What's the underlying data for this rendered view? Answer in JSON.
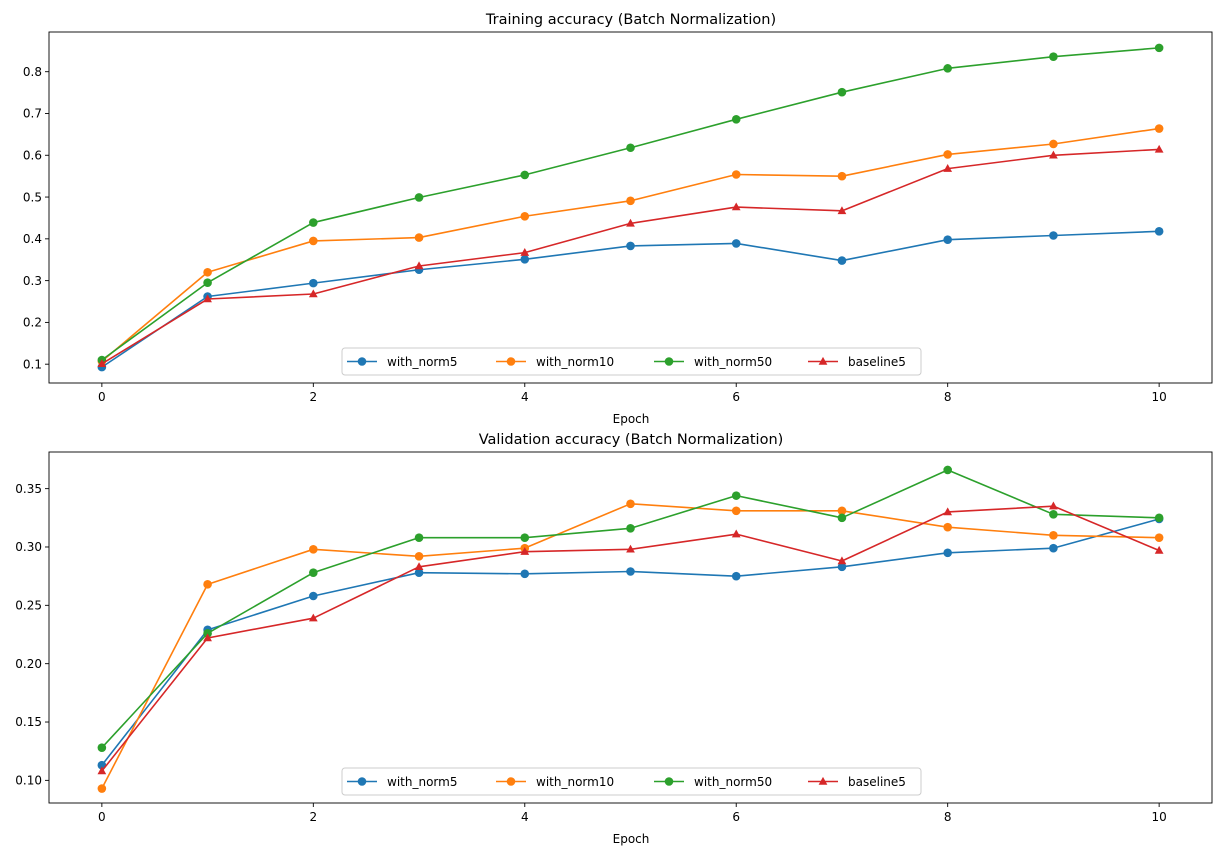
{
  "chart_data": [
    {
      "type": "line",
      "title": "Training accuracy (Batch Normalization)",
      "xlabel": "Epoch",
      "ylabel": "",
      "xlim": [
        -0.5,
        10.5
      ],
      "ylim": [
        0.055,
        0.895
      ],
      "xticks": [
        0,
        2,
        4,
        6,
        8,
        10
      ],
      "yticks": [
        0.1,
        0.2,
        0.3,
        0.4,
        0.5,
        0.6,
        0.7,
        0.8
      ],
      "ytick_labels": [
        "0.1",
        "0.2",
        "0.3",
        "0.4",
        "0.5",
        "0.6",
        "0.7",
        "0.8"
      ],
      "grid": false,
      "legend": "lower center",
      "x": [
        0,
        1,
        2,
        3,
        4,
        5,
        6,
        7,
        8,
        9,
        10
      ],
      "series": [
        {
          "name": "with_norm5",
          "color": "#1f77b4",
          "marker": "circle",
          "values": [
            0.093,
            0.262,
            0.294,
            0.326,
            0.351,
            0.383,
            0.389,
            0.348,
            0.398,
            0.408,
            0.418
          ]
        },
        {
          "name": "with_norm10",
          "color": "#ff7f0e",
          "marker": "circle",
          "values": [
            0.107,
            0.32,
            0.395,
            0.403,
            0.454,
            0.491,
            0.554,
            0.55,
            0.602,
            0.627,
            0.664
          ]
        },
        {
          "name": "with_norm50",
          "color": "#2ca02c",
          "marker": "circle",
          "values": [
            0.11,
            0.295,
            0.439,
            0.499,
            0.553,
            0.618,
            0.686,
            0.751,
            0.808,
            0.836,
            0.857
          ]
        },
        {
          "name": "baseline5",
          "color": "#d62728",
          "marker": "triangle",
          "values": [
            0.101,
            0.256,
            0.268,
            0.335,
            0.367,
            0.437,
            0.476,
            0.467,
            0.568,
            0.6,
            0.614
          ]
        }
      ]
    },
    {
      "type": "line",
      "title": "Validation accuracy (Batch Normalization)",
      "xlabel": "Epoch",
      "ylabel": "",
      "xlim": [
        -0.5,
        10.5
      ],
      "ylim": [
        0.0806,
        0.3814
      ],
      "xticks": [
        0,
        2,
        4,
        6,
        8,
        10
      ],
      "yticks": [
        0.1,
        0.15,
        0.2,
        0.25,
        0.3,
        0.35
      ],
      "ytick_labels": [
        "0.10",
        "0.15",
        "0.20",
        "0.25",
        "0.30",
        "0.35"
      ],
      "grid": false,
      "legend": "lower center",
      "x": [
        0,
        1,
        2,
        3,
        4,
        5,
        6,
        7,
        8,
        9,
        10
      ],
      "series": [
        {
          "name": "with_norm5",
          "color": "#1f77b4",
          "marker": "circle",
          "values": [
            0.113,
            0.229,
            0.258,
            0.278,
            0.277,
            0.279,
            0.275,
            0.283,
            0.295,
            0.299,
            0.324
          ]
        },
        {
          "name": "with_norm10",
          "color": "#ff7f0e",
          "marker": "circle",
          "values": [
            0.093,
            0.268,
            0.298,
            0.292,
            0.299,
            0.337,
            0.331,
            0.331,
            0.317,
            0.31,
            0.308
          ]
        },
        {
          "name": "with_norm50",
          "color": "#2ca02c",
          "marker": "circle",
          "values": [
            0.128,
            0.226,
            0.278,
            0.308,
            0.308,
            0.316,
            0.344,
            0.325,
            0.366,
            0.328,
            0.325
          ]
        },
        {
          "name": "baseline5",
          "color": "#d62728",
          "marker": "triangle",
          "values": [
            0.108,
            0.222,
            0.239,
            0.283,
            0.296,
            0.298,
            0.311,
            0.288,
            0.33,
            0.335,
            0.297
          ]
        }
      ]
    }
  ]
}
